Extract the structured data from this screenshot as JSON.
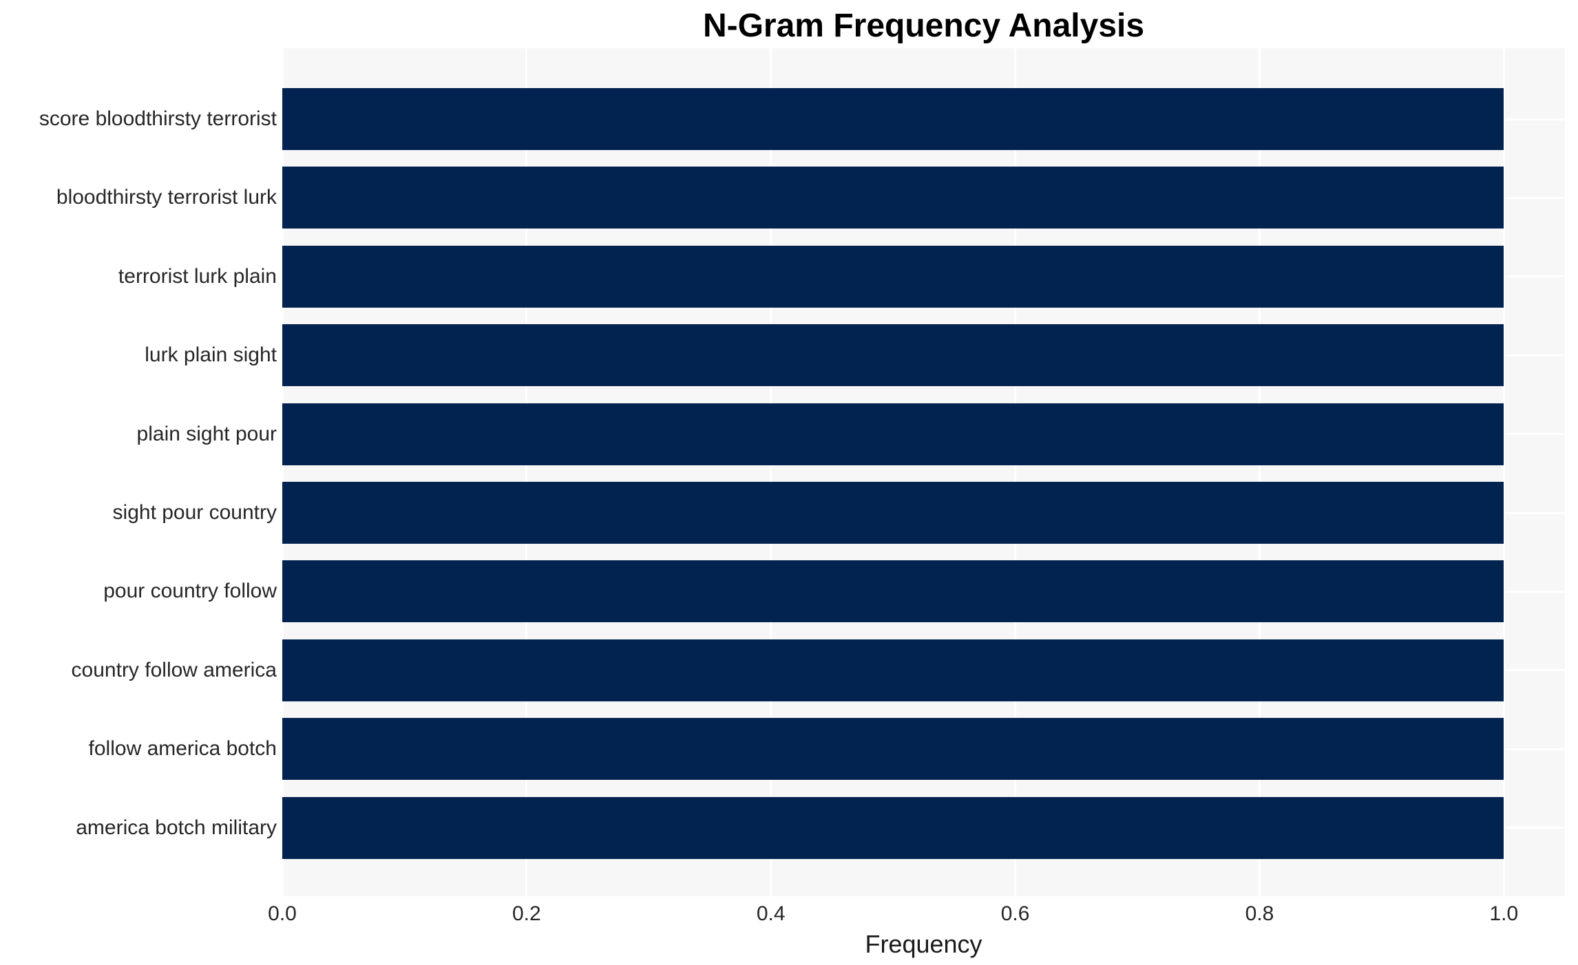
{
  "chart_data": {
    "type": "bar",
    "orientation": "horizontal",
    "title": "N-Gram Frequency Analysis",
    "xlabel": "Frequency",
    "ylabel": "",
    "categories": [
      "score bloodthirsty terrorist",
      "bloodthirsty terrorist lurk",
      "terrorist lurk plain",
      "lurk plain sight",
      "plain sight pour",
      "sight pour country",
      "pour country follow",
      "country follow america",
      "follow america botch",
      "america botch military"
    ],
    "values": [
      1.0,
      1.0,
      1.0,
      1.0,
      1.0,
      1.0,
      1.0,
      1.0,
      1.0,
      1.0
    ],
    "xlim": [
      0,
      1.05
    ],
    "x_ticks": [
      {
        "label": "0.0",
        "value": 0.0
      },
      {
        "label": "0.2",
        "value": 0.2
      },
      {
        "label": "0.4",
        "value": 0.4
      },
      {
        "label": "0.6",
        "value": 0.6
      },
      {
        "label": "0.8",
        "value": 0.8
      },
      {
        "label": "1.0",
        "value": 1.0
      }
    ],
    "grid": true,
    "legend": false,
    "colors": {
      "bar": "#022350",
      "plot_background": "#f7f7f7",
      "gridline": "#ffffff",
      "tick_text": "#262626",
      "title_text": "#000000"
    }
  }
}
